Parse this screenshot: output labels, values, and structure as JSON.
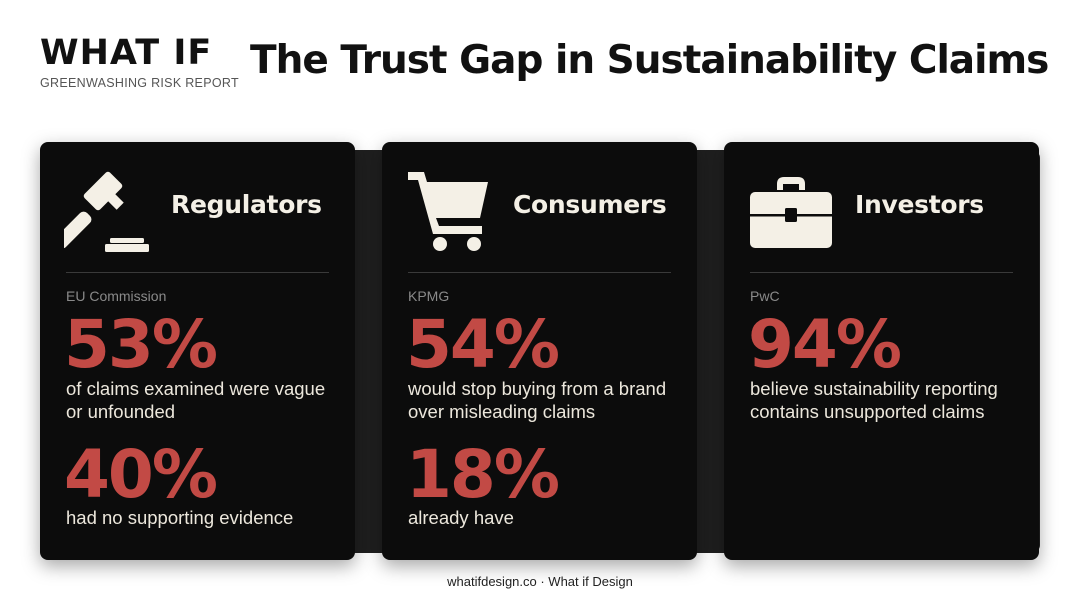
{
  "brand": {
    "logo": "WHAT IF",
    "subtitle": "GREENWASHING RISK REPORT"
  },
  "title": "The Trust Gap in Sustainability Claims",
  "cards": [
    {
      "heading": "Regulators",
      "icon": "gavel-icon",
      "source": "EU Commission",
      "stats": [
        {
          "value": "53%",
          "text": "of claims examined were vague or unfounded"
        },
        {
          "value": "40%",
          "text": "had no supporting evidence"
        }
      ]
    },
    {
      "heading": "Consumers",
      "icon": "shopping-cart-icon",
      "source": "KPMG",
      "stats": [
        {
          "value": "54%",
          "text": "would stop buying from a brand over misleading claims"
        },
        {
          "value": "18%",
          "text": "already have"
        }
      ]
    },
    {
      "heading": "Investors",
      "icon": "briefcase-icon",
      "source": "PwC",
      "stats": [
        {
          "value": "94%",
          "text": "believe sustainability reporting contains unsupported claims"
        }
      ]
    }
  ],
  "footer": "whatifdesign.co · What if Design",
  "colors": {
    "accent": "#c24a45",
    "card": "#0c0c0c",
    "icon": "#f4f0e6"
  }
}
